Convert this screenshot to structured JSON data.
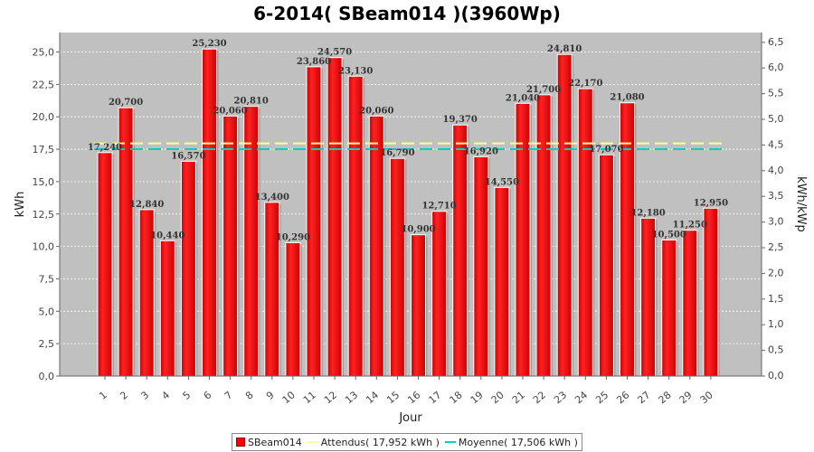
{
  "chart_data": {
    "type": "bar",
    "title": "6-2014( SBeam014 )(3960Wp)",
    "xlabel": "Jour",
    "ylabel": "kWh",
    "y2label": "kWh/kWp",
    "ylim": [
      0,
      26.5
    ],
    "yticks": [
      "0,0",
      "2,5",
      "5,0",
      "7,5",
      "10,0",
      "12,5",
      "15,0",
      "17,5",
      "20,0",
      "22,5",
      "25,0"
    ],
    "y2lim": [
      0,
      6.69
    ],
    "y2ticks": [
      "0,0",
      "0,5",
      "1,0",
      "1,5",
      "2,0",
      "2,5",
      "3,0",
      "3,5",
      "4,0",
      "4,5",
      "5,0",
      "5,5",
      "6,0",
      "6,5"
    ],
    "categories": [
      "1",
      "2",
      "3",
      "4",
      "5",
      "6",
      "7",
      "8",
      "9",
      "10",
      "11",
      "12",
      "13",
      "14",
      "15",
      "16",
      "17",
      "18",
      "19",
      "20",
      "21",
      "22",
      "23",
      "24",
      "25",
      "26",
      "27",
      "28",
      "29",
      "30"
    ],
    "series": [
      {
        "name": "SBeam014",
        "color": "#ff0000",
        "values": [
          17.24,
          20.7,
          12.84,
          10.44,
          16.57,
          25.23,
          20.06,
          20.81,
          13.4,
          10.29,
          23.86,
          24.57,
          23.13,
          20.06,
          16.79,
          10.9,
          12.71,
          19.37,
          16.92,
          14.55,
          21.04,
          21.7,
          24.81,
          22.17,
          17.07,
          21.08,
          12.18,
          10.5,
          11.25,
          12.95
        ],
        "labels": [
          "17,240",
          "20,700",
          "12,840",
          "10,440",
          "16,570",
          "25,230",
          "20,060",
          "20,810",
          "13,400",
          "10,290",
          "23,860",
          "24,570",
          "23,130",
          "20,060",
          "16,790",
          "10,900",
          "12,710",
          "19,370",
          "16,920",
          "14,550",
          "21,040",
          "21,700",
          "24,810",
          "22,170",
          "17,070",
          "21,080",
          "12,180",
          "10,500",
          "11,250",
          "12,950"
        ]
      }
    ],
    "reference_lines": [
      {
        "name": "Attendus",
        "legend_label": "Attendus( 17,952 kWh )",
        "value": 17.952,
        "color": "#ffff99"
      },
      {
        "name": "Moyenne",
        "legend_label": "Moyenne( 17,506 kWh )",
        "value": 17.506,
        "color": "#00cccc"
      }
    ],
    "grid": true,
    "legend_position": "bottom"
  }
}
